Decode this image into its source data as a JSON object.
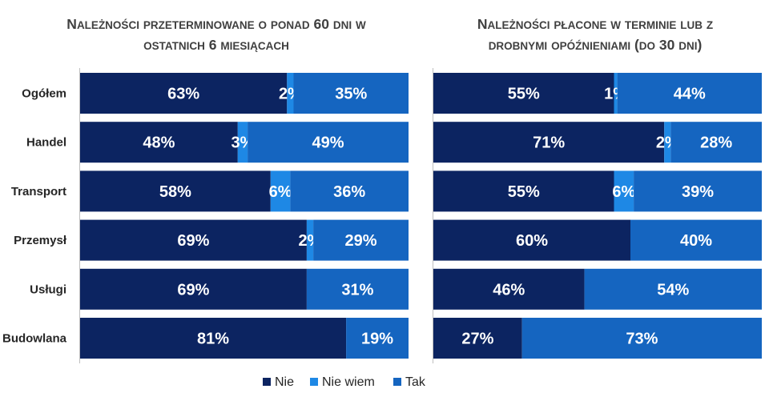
{
  "chart_data": [
    {
      "type": "bar",
      "orientation": "horizontal",
      "stacked": true,
      "normalized": true,
      "title_lines": [
        "Należności przeterminowane o ponad 60 dni w",
        "ostatnich 6 miesiącach"
      ],
      "categories": [
        "Ogółem",
        "Handel",
        "Transport",
        "Przemysł",
        "Usługi",
        "Budowlana"
      ],
      "series": [
        {
          "name": "Nie",
          "values": [
            63,
            48,
            58,
            69,
            69,
            81
          ]
        },
        {
          "name": "Nie wiem",
          "values": [
            2,
            3,
            6,
            2,
            0,
            0
          ]
        },
        {
          "name": "Tak",
          "values": [
            35,
            49,
            36,
            29,
            31,
            19
          ]
        }
      ],
      "unit": "%"
    },
    {
      "type": "bar",
      "orientation": "horizontal",
      "stacked": true,
      "normalized": true,
      "title_lines": [
        "Należności płacone w terminie lub z",
        "drobnymi opóźnieniami (do 30 dni)"
      ],
      "categories": [
        "Ogółem",
        "Handel",
        "Transport",
        "Przemysł",
        "Usługi",
        "Budowlana"
      ],
      "series": [
        {
          "name": "Nie",
          "values": [
            55,
            71,
            55,
            60,
            46,
            27
          ]
        },
        {
          "name": "Nie wiem",
          "values": [
            1,
            2,
            6,
            0,
            0,
            0
          ]
        },
        {
          "name": "Tak",
          "values": [
            44,
            28,
            39,
            40,
            54,
            73
          ]
        }
      ],
      "unit": "%"
    }
  ],
  "legend": {
    "position": "bottom",
    "items": [
      {
        "label": "Nie",
        "color": "#0c2461"
      },
      {
        "label": "Nie wiem",
        "color": "#1e88e5"
      },
      {
        "label": "Tak",
        "color": "#1565c0"
      }
    ]
  },
  "colors": {
    "nie": "#0c2461",
    "nie_wiem": "#1e88e5",
    "tak": "#1565c0",
    "axis": "#bfbfbf"
  }
}
